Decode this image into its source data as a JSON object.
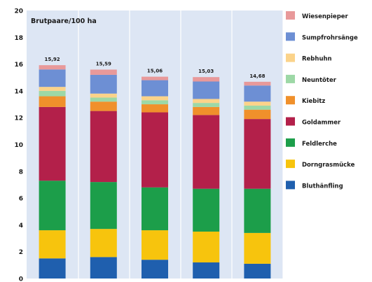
{
  "chart_data": {
    "type": "bar",
    "stacked": true,
    "title": "",
    "ylabel": "Brutpaare/100 ha",
    "xlabel": "",
    "ylim": [
      0,
      20
    ],
    "yticks": [
      "0",
      "2",
      "4",
      "6",
      "8",
      "10",
      "12",
      "14",
      "16",
      "18",
      "20"
    ],
    "categories": [
      "",
      "",
      "",
      "",
      ""
    ],
    "totals": [
      "15,92",
      "15,59",
      "15,06",
      "15,03",
      "14,68"
    ],
    "series": [
      {
        "name": "Bluthänfling",
        "color": "#1f5fae",
        "values": [
          1.5,
          1.6,
          1.4,
          1.2,
          1.1
        ]
      },
      {
        "name": "Dorngrasmücke",
        "color": "#f7c40d",
        "values": [
          2.1,
          2.1,
          2.2,
          2.3,
          2.3
        ]
      },
      {
        "name": "Feldlerche",
        "color": "#1c9e4a",
        "values": [
          3.7,
          3.5,
          3.2,
          3.2,
          3.3
        ]
      },
      {
        "name": "Goldammer",
        "color": "#b3204a",
        "values": [
          5.5,
          5.3,
          5.6,
          5.5,
          5.2
        ]
      },
      {
        "name": "Kiebitz",
        "color": "#f0902b",
        "values": [
          0.8,
          0.7,
          0.6,
          0.6,
          0.7
        ]
      },
      {
        "name": "Neuntöter",
        "color": "#9dd8a6",
        "values": [
          0.4,
          0.3,
          0.3,
          0.3,
          0.3
        ]
      },
      {
        "name": "Rebhuhn",
        "color": "#fbd38a",
        "values": [
          0.3,
          0.3,
          0.3,
          0.3,
          0.3
        ]
      },
      {
        "name": "Sumpfrohrsänger",
        "color": "#6d8fd4",
        "values": [
          1.3,
          1.4,
          1.2,
          1.3,
          1.2
        ]
      },
      {
        "name": "Wiesenpieper",
        "color": "#e8999a",
        "values": [
          0.32,
          0.39,
          0.26,
          0.33,
          0.28
        ]
      }
    ],
    "legend": [
      "Wiesenpieper",
      "Sumpfrohrsänge",
      "Rebhuhn",
      "Neuntöter",
      "Kiebitz",
      "Goldammer",
      "Feldlerche",
      "Dorngrasmücke",
      "Bluthänfling"
    ],
    "legend_position": "right",
    "grid": false,
    "plot_background": "#dde6f4"
  }
}
